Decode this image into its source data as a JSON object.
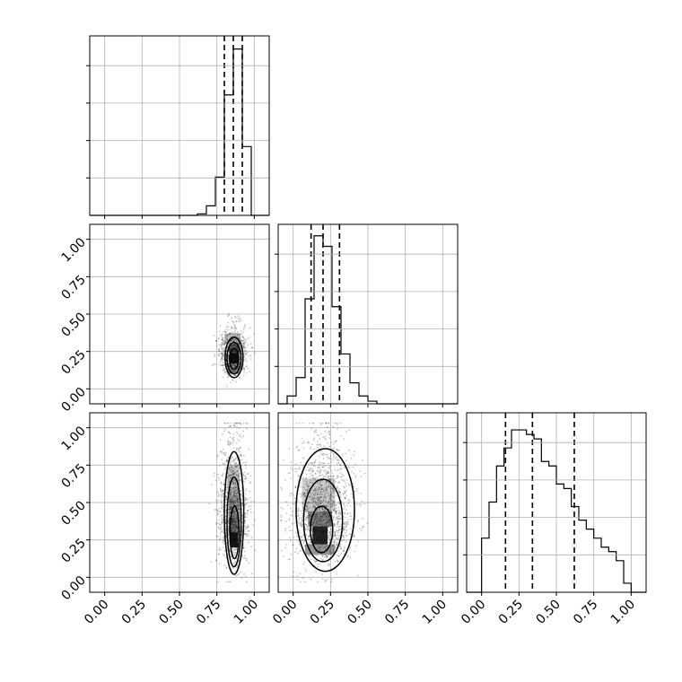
{
  "chart_data": {
    "type": "corner",
    "n_params": 3,
    "axis_range": [
      -0.1,
      1.1
    ],
    "tick_values": [
      0.0,
      0.25,
      0.5,
      0.75,
      1.0
    ],
    "tick_labels": [
      "0.00",
      "0.25",
      "0.50",
      "0.75",
      "1.00"
    ],
    "grid": true,
    "histograms": [
      {
        "bin_edges": [
          -0.1,
          -0.04,
          0.02,
          0.08,
          0.14,
          0.2,
          0.26,
          0.32,
          0.38,
          0.44,
          0.5,
          0.56,
          0.62,
          0.68,
          0.74,
          0.8,
          0.86,
          0.92,
          0.98,
          1.04,
          1.1
        ],
        "counts": [
          0,
          0,
          0,
          0,
          0,
          0,
          0,
          0,
          0,
          0,
          0,
          0,
          0.8,
          5,
          20,
          63,
          87,
          36,
          0,
          0
        ],
        "ymax": 92,
        "quantiles": [
          0.8,
          0.86,
          0.92
        ]
      },
      {
        "bin_edges": [
          -0.1,
          -0.04,
          0.02,
          0.08,
          0.14,
          0.2,
          0.26,
          0.32,
          0.38,
          0.44,
          0.5,
          0.56,
          0.62,
          0.68,
          0.74,
          0.8,
          0.86,
          0.92,
          0.98,
          1.04,
          1.1
        ],
        "counts": [
          0,
          3,
          10,
          40,
          64,
          60,
          37,
          19,
          8,
          3,
          1,
          0,
          0,
          0,
          0,
          0,
          0,
          0,
          0,
          0
        ],
        "ymax": 67,
        "quantiles": [
          0.12,
          0.2,
          0.31
        ]
      },
      {
        "bin_edges": [
          -0.1,
          -0.05,
          0.0,
          0.05,
          0.1,
          0.15,
          0.2,
          0.25,
          0.3,
          0.35,
          0.4,
          0.45,
          0.5,
          0.55,
          0.6,
          0.65,
          0.7,
          0.75,
          0.8,
          0.85,
          0.9,
          0.95,
          1.0,
          1.05,
          1.1
        ],
        "counts": [
          0,
          0,
          6,
          10,
          14,
          16,
          18,
          18,
          17.5,
          17,
          14.5,
          14,
          12,
          11.5,
          9.5,
          8,
          7,
          6,
          5,
          4.5,
          3.5,
          1,
          0,
          0
        ],
        "ymax": 19.5,
        "quantiles": [
          0.16,
          0.34,
          0.62
        ]
      }
    ],
    "pairs": [
      {
        "row": 1,
        "col": 0,
        "center": [
          0.86,
          0.2
        ],
        "spread": [
          0.045,
          0.075
        ],
        "n_points": 900,
        "contours": [
          {
            "cx": 0.865,
            "cy": 0.21,
            "rx": 0.06,
            "ry": 0.135
          },
          {
            "cx": 0.865,
            "cy": 0.205,
            "rx": 0.047,
            "ry": 0.105
          },
          {
            "cx": 0.865,
            "cy": 0.2,
            "rx": 0.03,
            "ry": 0.07
          }
        ],
        "density_cells": [
          {
            "x": 0.84,
            "y": 0.17,
            "w": 0.05,
            "h": 0.07,
            "shade": 0.9
          },
          {
            "x": 0.83,
            "y": 0.24,
            "w": 0.07,
            "h": 0.06,
            "shade": 0.55
          },
          {
            "x": 0.82,
            "y": 0.1,
            "w": 0.08,
            "h": 0.07,
            "shade": 0.45
          },
          {
            "x": 0.8,
            "y": 0.3,
            "w": 0.11,
            "h": 0.07,
            "shade": 0.25
          }
        ]
      },
      {
        "row": 2,
        "col": 0,
        "center": [
          0.86,
          0.36
        ],
        "spread": [
          0.05,
          0.2
        ],
        "n_points": 1300,
        "contours": [
          {
            "cx": 0.865,
            "cy": 0.43,
            "rx": 0.065,
            "ry": 0.41
          },
          {
            "cx": 0.865,
            "cy": 0.37,
            "rx": 0.047,
            "ry": 0.3
          },
          {
            "cx": 0.868,
            "cy": 0.3,
            "rx": 0.03,
            "ry": 0.175
          }
        ],
        "density_cells": [
          {
            "x": 0.84,
            "y": 0.2,
            "w": 0.05,
            "h": 0.1,
            "shade": 0.9
          },
          {
            "x": 0.83,
            "y": 0.3,
            "w": 0.07,
            "h": 0.1,
            "shade": 0.55
          },
          {
            "x": 0.83,
            "y": 0.4,
            "w": 0.07,
            "h": 0.15,
            "shade": 0.4
          },
          {
            "x": 0.82,
            "y": 0.55,
            "w": 0.08,
            "h": 0.2,
            "shade": 0.22
          }
        ]
      },
      {
        "row": 2,
        "col": 1,
        "center": [
          0.2,
          0.36
        ],
        "spread": [
          0.1,
          0.2
        ],
        "n_points": 1500,
        "contours": [
          {
            "cx": 0.215,
            "cy": 0.45,
            "rx": 0.195,
            "ry": 0.41
          },
          {
            "cx": 0.2,
            "cy": 0.38,
            "rx": 0.13,
            "ry": 0.275
          },
          {
            "cx": 0.19,
            "cy": 0.32,
            "rx": 0.075,
            "ry": 0.155
          }
        ],
        "density_cells": [
          {
            "x": 0.13,
            "y": 0.22,
            "w": 0.1,
            "h": 0.12,
            "shade": 0.85
          },
          {
            "x": 0.1,
            "y": 0.34,
            "w": 0.16,
            "h": 0.1,
            "shade": 0.5
          },
          {
            "x": 0.08,
            "y": 0.15,
            "w": 0.2,
            "h": 0.07,
            "shade": 0.4
          },
          {
            "x": 0.06,
            "y": 0.44,
            "w": 0.22,
            "h": 0.22,
            "shade": 0.2
          }
        ]
      }
    ]
  }
}
